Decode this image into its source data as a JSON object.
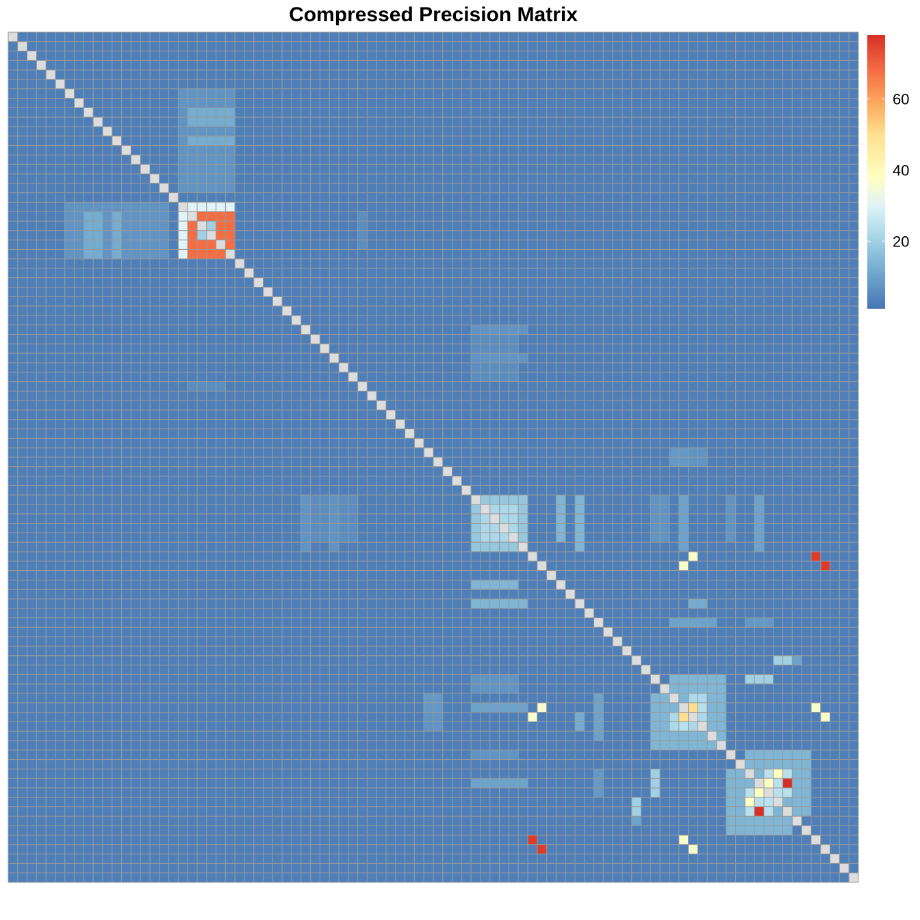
{
  "chart_data": {
    "type": "heatmap",
    "title": "Compressed Precision Matrix",
    "n": 90,
    "base_value": 3,
    "diagonal_value": null,
    "color_scale": {
      "stops": [
        {
          "value": 1,
          "color": "#4575b4"
        },
        {
          "value": 12,
          "color": "#74add1"
        },
        {
          "value": 22,
          "color": "#abd9e9"
        },
        {
          "value": 30,
          "color": "#e0f3f8"
        },
        {
          "value": 38,
          "color": "#ffffbf"
        },
        {
          "value": 50,
          "color": "#fee090"
        },
        {
          "value": 58,
          "color": "#fdae61"
        },
        {
          "value": 68,
          "color": "#f46d43"
        },
        {
          "value": 78,
          "color": "#d73027"
        }
      ],
      "na_color": "#dddddd",
      "grid_color": "#999999",
      "ticks": [
        20,
        40,
        60
      ],
      "range": [
        1,
        78
      ]
    },
    "blocks": [
      {
        "rows": [
          18,
          23
        ],
        "cols": [
          18,
          23
        ],
        "value": 68
      },
      {
        "rows": [
          18,
          18
        ],
        "cols": [
          19,
          23
        ],
        "value": 30
      },
      {
        "rows": [
          18,
          23
        ],
        "cols": [
          18,
          18
        ],
        "value": 30
      },
      {
        "rows": [
          8,
          16
        ],
        "cols": [
          19,
          22
        ],
        "value": 7
      },
      {
        "rows": [
          9,
          10
        ],
        "cols": [
          19,
          22
        ],
        "value": 12
      },
      {
        "rows": [
          12,
          13
        ],
        "cols": [
          19,
          22
        ],
        "value": 12
      },
      {
        "rows": [
          18,
          23
        ],
        "cols": [
          6,
          16
        ],
        "value": 7
      },
      {
        "rows": [
          19,
          23
        ],
        "cols": [
          8,
          9
        ],
        "value": 12
      },
      {
        "rows": [
          19,
          23
        ],
        "cols": [
          11,
          11
        ],
        "value": 12
      },
      {
        "rows": [
          49,
          54
        ],
        "cols": [
          49,
          54
        ],
        "value": 18
      },
      {
        "rows": [
          50,
          53
        ],
        "cols": [
          50,
          53
        ],
        "value": 22
      },
      {
        "rows": [
          49,
          54
        ],
        "cols": [
          60,
          60
        ],
        "value": 14
      },
      {
        "rows": [
          49,
          54
        ],
        "cols": [
          71,
          71
        ],
        "value": 10
      },
      {
        "rows": [
          49,
          54
        ],
        "cols": [
          79,
          79
        ],
        "value": 10
      },
      {
        "rows": [
          49,
          54
        ],
        "cols": [
          31,
          31
        ],
        "value": 7
      },
      {
        "rows": [
          49,
          54
        ],
        "cols": [
          34,
          34
        ],
        "value": 7
      },
      {
        "rows": [
          58,
          58
        ],
        "cols": [
          49,
          53
        ],
        "value": 14
      },
      {
        "rows": [
          68,
          74
        ],
        "cols": [
          70,
          75
        ],
        "value": 14
      },
      {
        "rows": [
          70,
          72
        ],
        "cols": [
          72,
          73
        ],
        "value": 22
      },
      {
        "rows": [
          70,
          74
        ],
        "cols": [
          62,
          62
        ],
        "value": 10
      },
      {
        "rows": [
          70,
          72
        ],
        "cols": [
          44,
          45
        ],
        "value": 8
      },
      {
        "rows": [
          76,
          82
        ],
        "cols": [
          78,
          84
        ],
        "value": 14
      },
      {
        "rows": [
          78,
          80
        ],
        "cols": [
          80,
          82
        ],
        "value": 24
      },
      {
        "rows": [
          78,
          80
        ],
        "cols": [
          68,
          68
        ],
        "value": 20
      },
      {
        "rows": [
          78,
          80
        ],
        "cols": [
          62,
          62
        ],
        "value": 8
      },
      {
        "rows": [
          66,
          66
        ],
        "cols": [
          81,
          82
        ],
        "value": 20
      },
      {
        "rows": [
          60,
          60
        ],
        "cols": [
          72,
          73
        ],
        "value": 12
      },
      {
        "rows": [
          32,
          33
        ],
        "cols": [
          49,
          53
        ],
        "value": 6
      },
      {
        "rows": [
          35,
          36
        ],
        "cols": [
          49,
          53
        ],
        "value": 6
      },
      {
        "rows": [
          37,
          37
        ],
        "cols": [
          19,
          22
        ],
        "value": 6
      },
      {
        "rows": [
          68,
          69
        ],
        "cols": [
          49,
          53
        ],
        "value": 7
      },
      {
        "rows": [
          76,
          76
        ],
        "cols": [
          49,
          53
        ],
        "value": 7
      },
      {
        "rows": [
          44,
          45
        ],
        "cols": [
          72,
          73
        ],
        "value": 7
      }
    ],
    "cells": [
      {
        "row": 20,
        "col": 21,
        "value": 20
      },
      {
        "row": 21,
        "col": 20,
        "value": 20
      },
      {
        "row": 71,
        "col": 72,
        "value": 50
      },
      {
        "row": 72,
        "col": 71,
        "value": 50
      },
      {
        "row": 71,
        "col": 73,
        "value": 24
      },
      {
        "row": 73,
        "col": 71,
        "value": 24
      },
      {
        "row": 79,
        "col": 80,
        "value": 38
      },
      {
        "row": 80,
        "col": 79,
        "value": 38
      },
      {
        "row": 78,
        "col": 81,
        "value": 38
      },
      {
        "row": 81,
        "col": 78,
        "value": 38
      },
      {
        "row": 79,
        "col": 82,
        "value": 78
      },
      {
        "row": 82,
        "col": 79,
        "value": 78
      },
      {
        "row": 55,
        "col": 72,
        "value": 36
      },
      {
        "row": 72,
        "col": 55,
        "value": 36
      },
      {
        "row": 55,
        "col": 85,
        "value": 76
      },
      {
        "row": 85,
        "col": 55,
        "value": 76
      },
      {
        "row": 71,
        "col": 56,
        "value": 36
      },
      {
        "row": 56,
        "col": 71,
        "value": 36
      },
      {
        "row": 71,
        "col": 85,
        "value": 36
      },
      {
        "row": 85,
        "col": 71,
        "value": 36
      },
      {
        "row": 86,
        "col": 56,
        "value": 76
      },
      {
        "row": 56,
        "col": 86,
        "value": 76
      },
      {
        "row": 86,
        "col": 72,
        "value": 36
      },
      {
        "row": 72,
        "col": 86,
        "value": 36
      },
      {
        "row": 66,
        "col": 83,
        "value": 10
      },
      {
        "row": 83,
        "col": 66,
        "value": 10
      }
    ]
  }
}
